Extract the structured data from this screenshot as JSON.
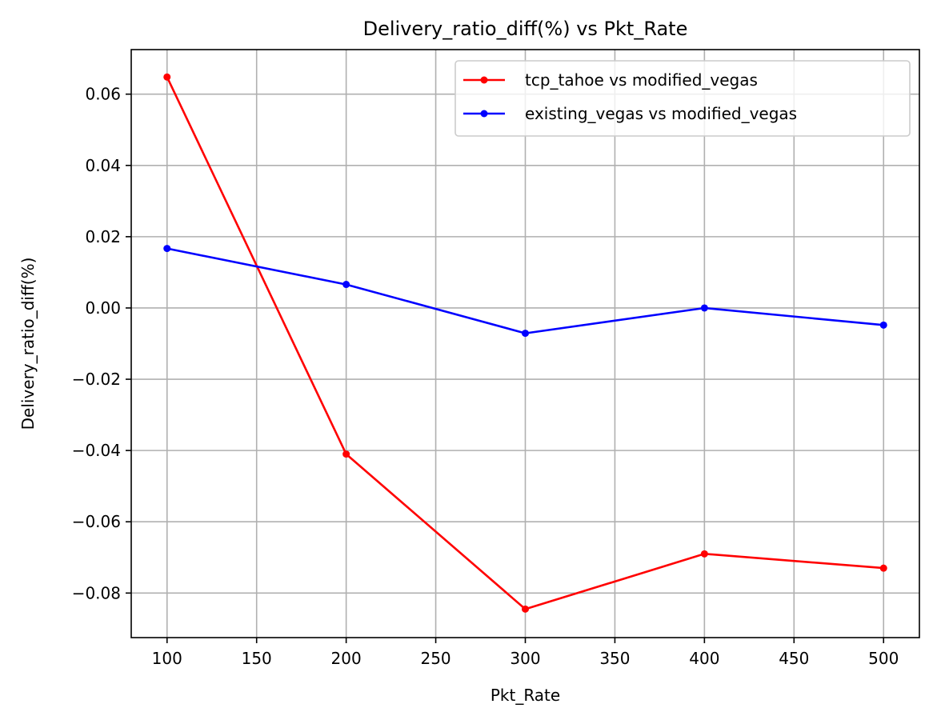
{
  "chart_data": {
    "type": "line",
    "title": "Delivery_ratio_diff(%) vs Pkt_Rate",
    "xlabel": "Pkt_Rate",
    "ylabel": "Delivery_ratio_diff(%)",
    "x": [
      100,
      200,
      300,
      400,
      500
    ],
    "xlim": [
      80,
      520
    ],
    "ylim": [
      -0.0925,
      0.0725
    ],
    "xticks": [
      100,
      150,
      200,
      250,
      300,
      350,
      400,
      450,
      500
    ],
    "yticks": [
      -0.08,
      -0.06,
      -0.04,
      -0.02,
      0.0,
      0.02,
      0.04,
      0.06
    ],
    "xtick_labels": [
      "100",
      "150",
      "200",
      "250",
      "300",
      "350",
      "400",
      "450",
      "500"
    ],
    "ytick_labels": [
      "−0.08",
      "−0.06",
      "−0.04",
      "−0.02",
      "0.00",
      "0.02",
      "0.04",
      "0.06"
    ],
    "grid": true,
    "legend_position": "top-right",
    "series": [
      {
        "name": "tcp_tahoe vs modified_vegas",
        "color": "#ff0000",
        "values": [
          0.0648,
          -0.041,
          -0.0845,
          -0.069,
          -0.073
        ]
      },
      {
        "name": "existing_vegas vs modified_vegas",
        "color": "#0000ff",
        "values": [
          0.0167,
          0.0066,
          -0.0071,
          0.0,
          -0.0048
        ]
      }
    ]
  }
}
